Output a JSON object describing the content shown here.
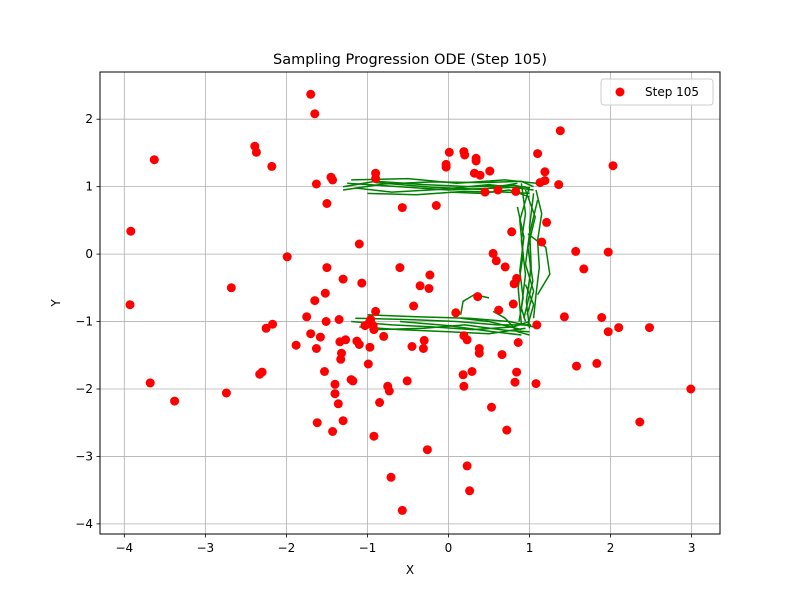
{
  "chart_data": {
    "type": "scatter",
    "title": "Sampling Progression ODE (Step 105)",
    "xlabel": "X",
    "ylabel": "Y",
    "xlim": [
      -4.3,
      3.35
    ],
    "ylim": [
      -4.15,
      2.7
    ],
    "xticks": [
      -4,
      -3,
      -2,
      -1,
      0,
      1,
      2,
      3
    ],
    "yticks": [
      -4,
      -3,
      -2,
      -1,
      0,
      1,
      2
    ],
    "grid": true,
    "legend": {
      "placement": "top-right",
      "entries": [
        "Step 105"
      ]
    },
    "series": [
      {
        "name": "Step 105",
        "kind": "scatter",
        "color": "#ff0000",
        "points": [
          [
            -1.7,
            2.37
          ],
          [
            -1.65,
            2.08
          ],
          [
            -2.39,
            1.6
          ],
          [
            -2.37,
            1.51
          ],
          [
            -3.63,
            1.4
          ],
          [
            -2.18,
            1.3
          ],
          [
            -1.45,
            1.14
          ],
          [
            -1.43,
            1.1
          ],
          [
            -1.63,
            1.04
          ],
          [
            -0.9,
            1.2
          ],
          [
            -0.9,
            1.12
          ],
          [
            -1.5,
            0.75
          ],
          [
            -0.57,
            0.69
          ],
          [
            -0.15,
            0.72
          ],
          [
            -3.92,
            0.34
          ],
          [
            -1.1,
            0.15
          ],
          [
            -1.99,
            -0.04
          ],
          [
            -0.6,
            -0.2
          ],
          [
            -1.5,
            -0.2
          ],
          [
            -1.3,
            -0.37
          ],
          [
            -1.07,
            -0.43
          ],
          [
            -0.23,
            -0.31
          ],
          [
            -0.35,
            -0.47
          ],
          [
            -0.24,
            -0.51
          ],
          [
            -2.68,
            -0.5
          ],
          [
            -1.52,
            -0.58
          ],
          [
            -1.65,
            -0.69
          ],
          [
            -0.43,
            -0.77
          ],
          [
            -2.17,
            -1.04
          ],
          [
            -2.25,
            -1.1
          ],
          [
            -1.75,
            -0.93
          ],
          [
            -1.51,
            -1.0
          ],
          [
            -1.35,
            -0.97
          ],
          [
            -0.9,
            -0.85
          ],
          [
            -0.96,
            -0.97
          ],
          [
            -0.98,
            -1.02
          ],
          [
            -1.03,
            -1.06
          ],
          [
            -0.93,
            -1.06
          ],
          [
            -0.92,
            -1.12
          ],
          [
            -1.7,
            -1.18
          ],
          [
            -1.58,
            -1.23
          ],
          [
            -1.34,
            -1.3
          ],
          [
            -1.27,
            -1.27
          ],
          [
            -1.13,
            -1.29
          ],
          [
            -1.1,
            -1.34
          ],
          [
            -0.8,
            -1.22
          ],
          [
            -0.3,
            -1.28
          ],
          [
            -0.45,
            -1.37
          ],
          [
            -0.31,
            -1.4
          ],
          [
            -0.97,
            -1.38
          ],
          [
            -1.32,
            -1.47
          ],
          [
            -1.33,
            -1.56
          ],
          [
            -1.63,
            -1.4
          ],
          [
            -1.88,
            -1.35
          ],
          [
            -0.99,
            -1.63
          ],
          [
            -1.53,
            -1.74
          ],
          [
            -1.2,
            -1.86
          ],
          [
            -1.18,
            -1.88
          ],
          [
            -1.4,
            -1.93
          ],
          [
            -0.75,
            -1.96
          ],
          [
            -0.51,
            -1.88
          ],
          [
            -0.73,
            -2.03
          ],
          [
            -1.4,
            -2.07
          ],
          [
            -1.36,
            -2.22
          ],
          [
            -0.85,
            -2.2
          ],
          [
            -2.3,
            -1.75
          ],
          [
            -2.33,
            -1.78
          ],
          [
            -3.68,
            -1.91
          ],
          [
            -2.74,
            -2.06
          ],
          [
            -3.38,
            -2.18
          ],
          [
            -1.62,
            -2.5
          ],
          [
            -1.3,
            -2.47
          ],
          [
            -1.43,
            -2.63
          ],
          [
            -0.92,
            -2.7
          ],
          [
            -0.26,
            -2.9
          ],
          [
            -0.71,
            -3.31
          ],
          [
            -0.57,
            -3.8
          ],
          [
            -3.93,
            -0.75
          ],
          [
            0.23,
            -3.14
          ],
          [
            0.26,
            -3.51
          ],
          [
            0.72,
            -2.61
          ],
          [
            0.53,
            -2.27
          ],
          [
            1.08,
            -1.92
          ],
          [
            0.82,
            -1.9
          ],
          [
            0.18,
            -1.79
          ],
          [
            0.29,
            -1.74
          ],
          [
            0.19,
            -1.96
          ],
          [
            0.84,
            -1.75
          ],
          [
            0.38,
            -1.47
          ],
          [
            0.66,
            -1.49
          ],
          [
            0.38,
            -1.4
          ],
          [
            0.86,
            -1.31
          ],
          [
            0.19,
            -1.21
          ],
          [
            0.23,
            -1.27
          ],
          [
            0.09,
            -0.87
          ],
          [
            0.36,
            -0.63
          ],
          [
            1.09,
            -1.05
          ],
          [
            0.62,
            -0.83
          ],
          [
            0.8,
            -0.74
          ],
          [
            0.55,
            0.01
          ],
          [
            0.59,
            -0.1
          ],
          [
            0.7,
            -0.19
          ],
          [
            0.81,
            -0.44
          ],
          [
            0.84,
            -0.36
          ],
          [
            0.78,
            0.33
          ],
          [
            1.21,
            0.47
          ],
          [
            1.15,
            0.18
          ],
          [
            1.43,
            -0.93
          ],
          [
            1.58,
            -1.66
          ],
          [
            1.83,
            -1.62
          ],
          [
            1.89,
            -0.94
          ],
          [
            1.97,
            -1.15
          ],
          [
            2.1,
            -1.09
          ],
          [
            2.48,
            -1.09
          ],
          [
            2.36,
            -2.49
          ],
          [
            2.99,
            -2.0
          ],
          [
            1.57,
            0.04
          ],
          [
            1.97,
            0.03
          ],
          [
            1.67,
            -0.22
          ],
          [
            2.03,
            1.31
          ],
          [
            1.1,
            1.49
          ],
          [
            1.38,
            1.83
          ],
          [
            1.36,
            1.03
          ],
          [
            1.19,
            1.22
          ],
          [
            1.19,
            1.09
          ],
          [
            1.13,
            1.06
          ],
          [
            0.01,
            1.51
          ],
          [
            0.19,
            1.52
          ],
          [
            0.2,
            1.47
          ],
          [
            0.34,
            1.42
          ],
          [
            0.34,
            1.38
          ],
          [
            -0.03,
            1.33
          ],
          [
            -0.03,
            1.29
          ],
          [
            0.51,
            1.23
          ],
          [
            0.32,
            1.2
          ],
          [
            0.39,
            1.17
          ],
          [
            0.45,
            0.92
          ],
          [
            0.61,
            0.95
          ],
          [
            0.83,
            0.93
          ]
        ]
      },
      {
        "name": "",
        "kind": "trajectories",
        "color": "#008000",
        "lines": [
          [
            [
              -1.3,
              1.0
            ],
            [
              -0.9,
              1.08
            ],
            [
              -0.3,
              1.03
            ],
            [
              0.3,
              1.0
            ],
            [
              0.8,
              1.02
            ],
            [
              1.0,
              0.98
            ]
          ],
          [
            [
              -1.25,
              1.05
            ],
            [
              -0.6,
              1.0
            ],
            [
              0.0,
              0.95
            ],
            [
              0.6,
              0.98
            ],
            [
              0.95,
              1.0
            ]
          ],
          [
            [
              -1.15,
              0.98
            ],
            [
              -0.7,
              0.92
            ],
            [
              -0.1,
              0.96
            ],
            [
              0.5,
              1.03
            ],
            [
              1.05,
              0.95
            ]
          ],
          [
            [
              -1.0,
              0.9
            ],
            [
              -0.4,
              0.88
            ],
            [
              0.2,
              0.93
            ],
            [
              0.7,
              0.92
            ],
            [
              1.0,
              0.9
            ]
          ],
          [
            [
              -1.3,
              0.95
            ],
            [
              -0.8,
              1.04
            ],
            [
              -0.2,
              1.07
            ],
            [
              0.4,
              1.06
            ],
            [
              0.9,
              1.08
            ],
            [
              1.05,
              1.0
            ]
          ],
          [
            [
              -1.2,
              1.1
            ],
            [
              -0.5,
              1.12
            ],
            [
              0.1,
              1.05
            ],
            [
              0.7,
              1.1
            ],
            [
              1.08,
              1.05
            ]
          ],
          [
            [
              -0.9,
              1.06
            ],
            [
              -0.2,
              0.99
            ],
            [
              0.4,
              0.96
            ],
            [
              0.85,
              1.05
            ]
          ],
          [
            [
              0.02,
              0.92
            ],
            [
              0.4,
              0.9
            ],
            [
              0.75,
              0.95
            ],
            [
              1.0,
              0.85
            ]
          ],
          [
            [
              0.9,
              1.05
            ],
            [
              0.95,
              0.6
            ],
            [
              0.9,
              0.2
            ],
            [
              0.95,
              -0.3
            ],
            [
              0.9,
              -0.8
            ],
            [
              0.95,
              -1.0
            ]
          ],
          [
            [
              1.0,
              1.0
            ],
            [
              0.88,
              0.5
            ],
            [
              0.92,
              0.0
            ],
            [
              0.86,
              -0.5
            ],
            [
              0.9,
              -1.05
            ]
          ],
          [
            [
              1.05,
              0.9
            ],
            [
              1.0,
              0.4
            ],
            [
              1.02,
              -0.2
            ],
            [
              0.96,
              -0.7
            ],
            [
              1.0,
              -1.1
            ]
          ],
          [
            [
              0.95,
              0.95
            ],
            [
              1.07,
              0.55
            ],
            [
              0.98,
              0.1
            ],
            [
              1.04,
              -0.4
            ],
            [
              0.93,
              -0.95
            ]
          ],
          [
            [
              1.1,
              0.8
            ],
            [
              1.0,
              0.3
            ],
            [
              0.95,
              -0.15
            ],
            [
              1.05,
              -0.55
            ],
            [
              0.97,
              -0.9
            ]
          ],
          [
            [
              0.85,
              0.7
            ],
            [
              0.93,
              0.25
            ],
            [
              0.88,
              -0.25
            ],
            [
              0.92,
              -0.65
            ],
            [
              0.87,
              -1.0
            ]
          ],
          [
            [
              1.08,
              0.95
            ],
            [
              1.15,
              0.6
            ],
            [
              1.1,
              0.2
            ],
            [
              1.12,
              -0.2
            ],
            [
              1.08,
              -0.6
            ],
            [
              1.05,
              -0.95
            ]
          ],
          [
            [
              0.98,
              0.3
            ],
            [
              1.2,
              0.1
            ],
            [
              1.25,
              -0.3
            ],
            [
              1.1,
              -0.6
            ]
          ],
          [
            [
              0.95,
              -0.45
            ],
            [
              1.05,
              -0.75
            ],
            [
              0.98,
              -1.05
            ]
          ],
          [
            [
              -1.2,
              -1.0
            ],
            [
              -0.7,
              -1.05
            ],
            [
              -0.2,
              -1.08
            ],
            [
              0.3,
              -1.12
            ],
            [
              0.8,
              -1.08
            ],
            [
              1.0,
              -1.0
            ]
          ],
          [
            [
              -1.1,
              -1.08
            ],
            [
              -0.6,
              -1.12
            ],
            [
              0.0,
              -1.15
            ],
            [
              0.5,
              -1.18
            ],
            [
              0.95,
              -1.1
            ]
          ],
          [
            [
              -1.15,
              -0.95
            ],
            [
              -0.5,
              -0.97
            ],
            [
              0.1,
              -1.0
            ],
            [
              0.6,
              -1.05
            ],
            [
              1.02,
              -1.05
            ]
          ],
          [
            [
              -0.9,
              -1.12
            ],
            [
              -0.3,
              -1.1
            ],
            [
              0.2,
              -1.05
            ],
            [
              0.7,
              -1.13
            ],
            [
              1.0,
              -1.15
            ]
          ],
          [
            [
              -1.0,
              -0.9
            ],
            [
              -0.4,
              -0.93
            ],
            [
              0.25,
              -0.95
            ],
            [
              0.75,
              -1.0
            ],
            [
              1.05,
              -1.08
            ]
          ],
          [
            [
              -0.6,
              -1.0
            ],
            [
              0.0,
              -1.06
            ],
            [
              0.55,
              -1.15
            ],
            [
              0.9,
              -1.2
            ]
          ],
          [
            [
              0.15,
              -0.95
            ],
            [
              0.5,
              -1.0
            ],
            [
              0.9,
              -1.12
            ]
          ],
          [
            [
              0.15,
              -0.9
            ],
            [
              0.18,
              -0.7
            ],
            [
              0.32,
              -0.6
            ],
            [
              0.5,
              -0.65
            ]
          ],
          [
            [
              0.55,
              -0.85
            ],
            [
              0.7,
              -0.95
            ],
            [
              0.85,
              -1.15
            ],
            [
              1.0,
              -1.2
            ]
          ]
        ]
      }
    ]
  }
}
